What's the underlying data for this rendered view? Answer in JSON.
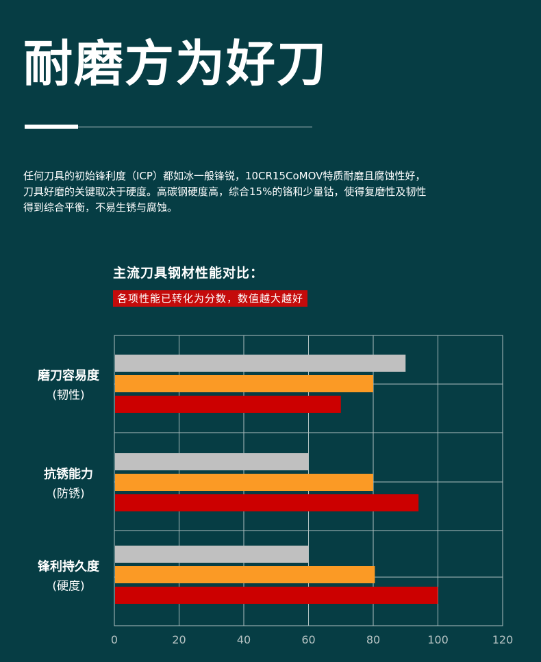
{
  "title": "耐磨方为好刀",
  "description": "任何刀具的初始锋利度（ICP）都如冰一般锋锐，10CR15CoMOV特质耐磨且腐蚀性好，刀具好磨的关键取决于硬度。高碳钢硬度高，综合15%的铬和少量钴，使得复磨性及韧性得到综合平衡，不易生锈与腐蚀。",
  "chart_heading": "主流刀具钢材性能对比：",
  "chart_note": "各项性能已转化为分数，数值越大越好",
  "chart_data": {
    "type": "bar",
    "orientation": "horizontal",
    "categories": [
      {
        "name": "磨刀容易度",
        "sub": "(韧性)"
      },
      {
        "name": "抗锈能力",
        "sub": "(防锈)"
      },
      {
        "name": "锋利持久度",
        "sub": "(硬度)"
      }
    ],
    "series": [
      {
        "color": "#c0c0c0",
        "values": [
          90,
          60,
          60
        ]
      },
      {
        "color": "#fb9a25",
        "values": [
          80,
          80,
          80.5
        ]
      },
      {
        "color": "#cc0000",
        "values": [
          70,
          94,
          100
        ]
      }
    ],
    "xlim": [
      0,
      120
    ],
    "xticks": [
      "0",
      "20",
      "40",
      "60",
      "80",
      "100",
      "120"
    ],
    "grid": true
  },
  "colors": {
    "background": "#063d44",
    "grid": "#aebfbf",
    "tick_text": "#b7c4c4"
  }
}
